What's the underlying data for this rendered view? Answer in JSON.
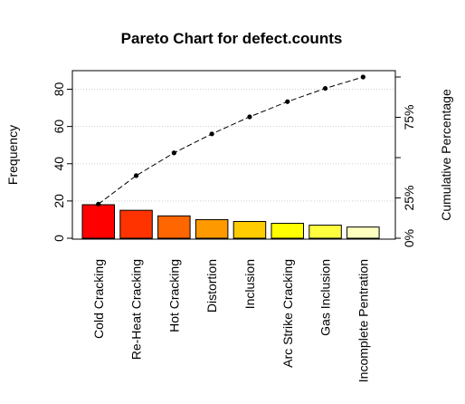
{
  "chart_data": {
    "type": "bar",
    "title": "Pareto Chart for defect.counts",
    "xlabel": "",
    "ylabel": "Frequency",
    "ylabel_right": "Cumulative Percentage",
    "categories": [
      "Cold Cracking",
      "Re-Heat Cracking",
      "Hot Cracking",
      "Distortion",
      "Inclusion",
      "Arc Strike Cracking",
      "Gas Inclusion",
      "Incomplete Pentration"
    ],
    "values": [
      18,
      15,
      12,
      10,
      9,
      8,
      7,
      6
    ],
    "bar_colors": [
      "#FF0000",
      "#FF3300",
      "#FF6600",
      "#FF9900",
      "#FFCC00",
      "#FFFF00",
      "#FFFF40",
      "#FFFFBF"
    ],
    "ylim": [
      0,
      90
    ],
    "yticks": [
      "0",
      "20",
      "40",
      "60",
      "80"
    ],
    "yticks_right": [
      "0%",
      "25%",
      "75%"
    ],
    "cumulative_percent": [
      21.2,
      38.8,
      52.9,
      64.7,
      75.3,
      84.7,
      92.9,
      100.0
    ],
    "grid": true
  }
}
